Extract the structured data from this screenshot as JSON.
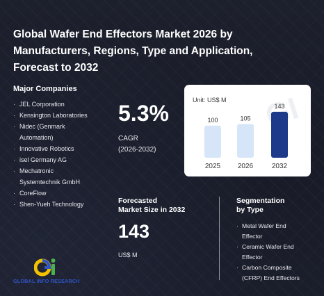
{
  "title": "Global Wafer End Effectors Market 2026 by Manufacturers, Regions, Type and Application, Forecast to 2032",
  "companies": {
    "heading": "Major Companies",
    "items": [
      "JEL Corporation",
      "Kensington Laboratories",
      "Nidec (Genmark",
      "Automation)",
      "Innovative Robotics",
      "isel Germany AG",
      "Mechatronic",
      "Systemtechnik GmbH",
      "CoreFlow",
      "Shen-Yueh Technology"
    ],
    "bulleted": [
      true,
      true,
      true,
      false,
      true,
      true,
      true,
      false,
      true,
      true
    ]
  },
  "cagr": {
    "value": "5.3%",
    "label": "CAGR",
    "period": "(2026-2032)"
  },
  "chart_data": {
    "type": "bar",
    "unit_label": "Unit: US$ M",
    "categories": [
      "2025",
      "2026",
      "2032"
    ],
    "values": [
      100,
      105,
      143
    ],
    "colors": [
      "#d6e6f8",
      "#d6e6f8",
      "#1d3a8a"
    ],
    "ylim": [
      0,
      160
    ]
  },
  "watermark": "GI",
  "forecast": {
    "heading_line1": "Forecasted",
    "heading_line2": "Market Size in 2032",
    "value": "143",
    "unit": "US$ M"
  },
  "segmentation": {
    "heading_line1": "Segmentation",
    "heading_line2": "by Type",
    "items": [
      "Metal Wafer End",
      "Effector",
      "Ceramic Wafer End",
      "Effector",
      "Carbon Composite",
      "(CFRP) End Effectors"
    ],
    "bulleted": [
      true,
      false,
      true,
      false,
      true,
      false
    ]
  },
  "logo": {
    "text": "GLOBAL INFO RESEARCH",
    "colors": {
      "yellow": "#f2c200",
      "green": "#4caf50",
      "blue": "#2f55c8"
    }
  },
  "theme": {
    "background": "#1c1f2c",
    "divider": "#ffffff"
  }
}
